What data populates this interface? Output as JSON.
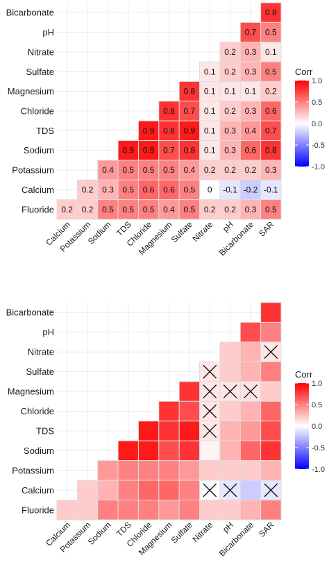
{
  "chart_data": [
    {
      "type": "heatmap",
      "variables": [
        "Fluoride",
        "Calcium",
        "Potassium",
        "Sodium",
        "TDS",
        "Chloride",
        "Magnesium",
        "Sulfate",
        "Nitrate",
        "pH",
        "Bicarbonate",
        "SAR"
      ],
      "y_labels_top_to_bottom": [
        "Bicarbonate",
        "pH",
        "Nitrate",
        "Sulfate",
        "Magnesium",
        "Chloride",
        "TDS",
        "Sodium",
        "Potassium",
        "Calcium",
        "Fluoride"
      ],
      "x_labels": [
        "Calcium",
        "Potassium",
        "Sodium",
        "TDS",
        "Chloride",
        "Magnesium",
        "Sulfate",
        "Nitrate",
        "pH",
        "Bicarbonate",
        "SAR"
      ],
      "rows": [
        {
          "row": "Bicarbonate",
          "cols": [
            "SAR"
          ],
          "values": [
            "0.8"
          ]
        },
        {
          "row": "pH",
          "cols": [
            "Bicarbonate",
            "SAR"
          ],
          "values": [
            "0.7",
            "0.5"
          ]
        },
        {
          "row": "Nitrate",
          "cols": [
            "pH",
            "Bicarbonate",
            "SAR"
          ],
          "values": [
            "0.2",
            "0.3",
            "0.1"
          ]
        },
        {
          "row": "Sulfate",
          "cols": [
            "Nitrate",
            "pH",
            "Bicarbonate",
            "SAR"
          ],
          "values": [
            "0.1",
            "0.2",
            "0.3",
            "0.5"
          ]
        },
        {
          "row": "Magnesium",
          "cols": [
            "Sulfate",
            "Nitrate",
            "pH",
            "Bicarbonate",
            "SAR"
          ],
          "values": [
            "0.8",
            "0.1",
            "0.1",
            "0.1",
            "0.2"
          ]
        },
        {
          "row": "Chloride",
          "cols": [
            "Magnesium",
            "Sulfate",
            "Nitrate",
            "pH",
            "Bicarbonate",
            "SAR"
          ],
          "values": [
            "0.8",
            "0.7",
            "0.1",
            "0.2",
            "0.3",
            "0.6"
          ]
        },
        {
          "row": "TDS",
          "cols": [
            "Chloride",
            "Magnesium",
            "Sulfate",
            "Nitrate",
            "pH",
            "Bicarbonate",
            "SAR"
          ],
          "values": [
            "0.9",
            "0.8",
            "0.9",
            "0.1",
            "0.3",
            "0.4",
            "0.7"
          ]
        },
        {
          "row": "Sodium",
          "cols": [
            "TDS",
            "Chloride",
            "Magnesium",
            "Sulfate",
            "Nitrate",
            "pH",
            "Bicarbonate",
            "SAR"
          ],
          "values": [
            "0.9",
            "0.9",
            "0.7",
            "0.8",
            "0.1",
            "0.3",
            "0.6",
            "0.8"
          ]
        },
        {
          "row": "Potassium",
          "cols": [
            "Sodium",
            "TDS",
            "Chloride",
            "Magnesium",
            "Sulfate",
            "Nitrate",
            "pH",
            "Bicarbonate",
            "SAR"
          ],
          "values": [
            "0.4",
            "0.5",
            "0.5",
            "0.5",
            "0.4",
            "0.2",
            "0.2",
            "0.2",
            "0.3"
          ]
        },
        {
          "row": "Calcium",
          "cols": [
            "Potassium",
            "Sodium",
            "TDS",
            "Chloride",
            "Magnesium",
            "Sulfate",
            "Nitrate",
            "pH",
            "Bicarbonate",
            "SAR"
          ],
          "values": [
            "0.2",
            "0.3",
            "0.5",
            "0.6",
            "0.6",
            "0.5",
            "0",
            "-0.1",
            "-0.2",
            "-0.1"
          ]
        },
        {
          "row": "Fluoride",
          "cols": [
            "Calcium",
            "Potassium",
            "Sodium",
            "TDS",
            "Chloride",
            "Magnesium",
            "Sulfate",
            "Nitrate",
            "pH",
            "Bicarbonate",
            "SAR"
          ],
          "values": [
            "0.2",
            "0.2",
            "0.5",
            "0.5",
            "0.5",
            "0.4",
            "0.5",
            "0.2",
            "0.2",
            "0.3",
            "0.5"
          ]
        }
      ],
      "show_values": true,
      "insignificant_marked": false,
      "legend": {
        "title": "Corr",
        "ticks": [
          "1.0",
          "0.5",
          "0.0",
          "-0.5",
          "-1.0"
        ],
        "range": [
          -1.0,
          1.0
        ],
        "position": "right"
      },
      "colors": {
        "low": "#0000ff",
        "mid": "#ffffff",
        "high": "#ff0000",
        "cell_border": "#dddddd",
        "grid": "#ebebeb"
      }
    },
    {
      "type": "heatmap",
      "variables": [
        "Fluoride",
        "Calcium",
        "Potassium",
        "Sodium",
        "TDS",
        "Chloride",
        "Magnesium",
        "Sulfate",
        "Nitrate",
        "pH",
        "Bicarbonate",
        "SAR"
      ],
      "y_labels_top_to_bottom": [
        "Bicarbonate",
        "pH",
        "Nitrate",
        "Sulfate",
        "Magnesium",
        "Chloride",
        "TDS",
        "Sodium",
        "Potassium",
        "Calcium",
        "Fluoride"
      ],
      "x_labels": [
        "Calcium",
        "Potassium",
        "Sodium",
        "TDS",
        "Chloride",
        "Magnesium",
        "Sulfate",
        "Nitrate",
        "pH",
        "Bicarbonate",
        "SAR"
      ],
      "rows": [
        {
          "row": "Bicarbonate",
          "cols": [
            "SAR"
          ],
          "values": [
            "0.8"
          ]
        },
        {
          "row": "pH",
          "cols": [
            "Bicarbonate",
            "SAR"
          ],
          "values": [
            "0.7",
            "0.5"
          ]
        },
        {
          "row": "Nitrate",
          "cols": [
            "pH",
            "Bicarbonate",
            "SAR"
          ],
          "values": [
            "0.2",
            "0.3",
            "0.1"
          ]
        },
        {
          "row": "Sulfate",
          "cols": [
            "Nitrate",
            "pH",
            "Bicarbonate",
            "SAR"
          ],
          "values": [
            "0.1",
            "0.2",
            "0.3",
            "0.5"
          ]
        },
        {
          "row": "Magnesium",
          "cols": [
            "Sulfate",
            "Nitrate",
            "pH",
            "Bicarbonate",
            "SAR"
          ],
          "values": [
            "0.8",
            "0.1",
            "0.1",
            "0.1",
            "0.2"
          ]
        },
        {
          "row": "Chloride",
          "cols": [
            "Magnesium",
            "Sulfate",
            "Nitrate",
            "pH",
            "Bicarbonate",
            "SAR"
          ],
          "values": [
            "0.8",
            "0.7",
            "0.1",
            "0.2",
            "0.3",
            "0.6"
          ]
        },
        {
          "row": "TDS",
          "cols": [
            "Chloride",
            "Magnesium",
            "Sulfate",
            "Nitrate",
            "pH",
            "Bicarbonate",
            "SAR"
          ],
          "values": [
            "0.9",
            "0.8",
            "0.9",
            "0.1",
            "0.3",
            "0.4",
            "0.7"
          ]
        },
        {
          "row": "Sodium",
          "cols": [
            "TDS",
            "Chloride",
            "Magnesium",
            "Sulfate",
            "Nitrate",
            "pH",
            "Bicarbonate",
            "SAR"
          ],
          "values": [
            "0.9",
            "0.9",
            "0.7",
            "0.8",
            "0.05",
            "0.3",
            "0.6",
            "0.8"
          ]
        },
        {
          "row": "Potassium",
          "cols": [
            "Sodium",
            "TDS",
            "Chloride",
            "Magnesium",
            "Sulfate",
            "Nitrate",
            "pH",
            "Bicarbonate",
            "SAR"
          ],
          "values": [
            "0.4",
            "0.5",
            "0.5",
            "0.5",
            "0.4",
            "0.2",
            "0.2",
            "0.2",
            "0.3"
          ]
        },
        {
          "row": "Calcium",
          "cols": [
            "Potassium",
            "Sodium",
            "TDS",
            "Chloride",
            "Magnesium",
            "Sulfate",
            "Nitrate",
            "pH",
            "Bicarbonate",
            "SAR"
          ],
          "values": [
            "0.2",
            "0.3",
            "0.5",
            "0.6",
            "0.6",
            "0.5",
            "0",
            "-0.1",
            "-0.2",
            "-0.1"
          ]
        },
        {
          "row": "Fluoride",
          "cols": [
            "Calcium",
            "Potassium",
            "Sodium",
            "TDS",
            "Chloride",
            "Magnesium",
            "Sulfate",
            "Nitrate",
            "pH",
            "Bicarbonate",
            "SAR"
          ],
          "values": [
            "0.2",
            "0.2",
            "0.5",
            "0.5",
            "0.5",
            "0.4",
            "0.5",
            "0.2",
            "0.2",
            "0.3",
            "0.5"
          ]
        }
      ],
      "show_values": false,
      "insignificant_marked": true,
      "insignificant_cells": [
        {
          "row": "Nitrate",
          "col": "SAR"
        },
        {
          "row": "Sulfate",
          "col": "Nitrate"
        },
        {
          "row": "Magnesium",
          "col": "Nitrate"
        },
        {
          "row": "Magnesium",
          "col": "pH"
        },
        {
          "row": "Magnesium",
          "col": "Bicarbonate"
        },
        {
          "row": "Chloride",
          "col": "Nitrate"
        },
        {
          "row": "TDS",
          "col": "Nitrate"
        },
        {
          "row": "Calcium",
          "col": "Nitrate"
        },
        {
          "row": "Calcium",
          "col": "pH"
        },
        {
          "row": "Calcium",
          "col": "SAR"
        }
      ],
      "legend": {
        "title": "Corr",
        "ticks": [
          "1.0",
          "0.5",
          "0.0",
          "-0.5",
          "-1.0"
        ],
        "range": [
          -1.0,
          1.0
        ],
        "position": "right"
      },
      "colors": {
        "low": "#0000ff",
        "mid": "#ffffff",
        "high": "#ff0000",
        "cell_border": "#dddddd",
        "grid": "#ebebeb"
      }
    }
  ]
}
